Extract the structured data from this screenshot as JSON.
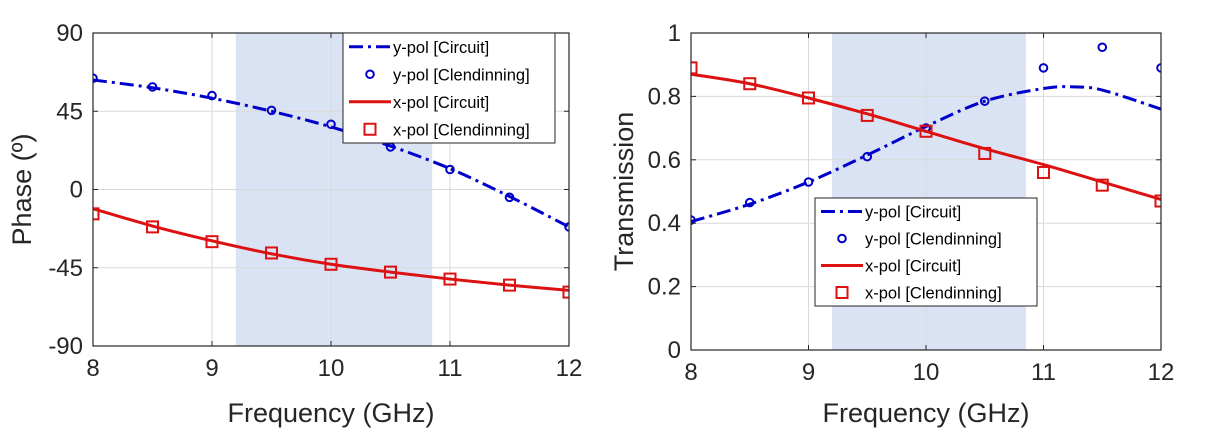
{
  "colors": {
    "ypol": "#0000cc",
    "xpol": "#dd1111",
    "band": "#dae3f3",
    "grid": "#d9d9d9",
    "axis": "#262626"
  },
  "chart_data": [
    {
      "type": "line",
      "xlabel": "Frequency (GHz)",
      "ylabel": "Phase (º)",
      "xlim": [
        8,
        12
      ],
      "ylim": [
        -90,
        90
      ],
      "xticks": [
        8,
        9,
        10,
        11,
        12
      ],
      "yticks": [
        -90,
        -45,
        0,
        45,
        90
      ],
      "xtick_labels": [
        "8",
        "9",
        "10",
        "11",
        "12"
      ],
      "ytick_labels": [
        "-90",
        "-45",
        "0",
        "45",
        "90"
      ],
      "grid": true,
      "shaded_band": [
        9.2,
        10.85
      ],
      "legend_position": "top-right",
      "series": [
        {
          "name": "y-pol [Circuit]",
          "style": "dashdot-line",
          "color": "ypol",
          "x": [
            8,
            8.5,
            9,
            9.5,
            10,
            10.5,
            11,
            11.5,
            12
          ],
          "y": [
            63,
            58.5,
            52.5,
            45,
            36,
            25,
            12,
            -4,
            -21.5
          ]
        },
        {
          "name": "y-pol [Clendinning]",
          "style": "circle-marker",
          "color": "ypol",
          "x": [
            8,
            8.5,
            9,
            9.5,
            10,
            10.5,
            11,
            11.5,
            12
          ],
          "y": [
            64,
            59,
            54,
            45.5,
            37.5,
            24.5,
            11.5,
            -4.5,
            -21.5
          ]
        },
        {
          "name": "x-pol [Circuit]",
          "style": "solid-line",
          "color": "xpol",
          "x": [
            8,
            8.5,
            9,
            9.5,
            10,
            10.5,
            11,
            11.5,
            12
          ],
          "y": [
            -11,
            -21,
            -29.5,
            -37,
            -43,
            -47.5,
            -51.5,
            -55,
            -58
          ]
        },
        {
          "name": "x-pol [Clendinning]",
          "style": "square-marker",
          "color": "xpol",
          "x": [
            8,
            8.5,
            9,
            9.5,
            10,
            10.5,
            11,
            11.5,
            12
          ],
          "y": [
            -14,
            -21.5,
            -30,
            -36.5,
            -43,
            -47.5,
            -51.5,
            -55,
            -59
          ]
        }
      ]
    },
    {
      "type": "line",
      "xlabel": "Frequency (GHz)",
      "ylabel": "Transmission",
      "xlim": [
        8,
        12
      ],
      "ylim": [
        0,
        1
      ],
      "xticks": [
        8,
        9,
        10,
        11,
        12
      ],
      "yticks": [
        0,
        0.2,
        0.4,
        0.6,
        0.8,
        1
      ],
      "xtick_labels": [
        "8",
        "9",
        "10",
        "11",
        "12"
      ],
      "ytick_labels": [
        "0",
        "0.2",
        "0.4",
        "0.6",
        "0.8",
        "1"
      ],
      "grid": true,
      "shaded_band": [
        9.2,
        10.85
      ],
      "legend_position": "bottom-center",
      "series": [
        {
          "name": "y-pol [Circuit]",
          "style": "dashdot-line",
          "color": "ypol",
          "x": [
            8,
            8.5,
            9,
            9.5,
            10,
            10.5,
            11,
            11.25,
            11.5,
            12
          ],
          "y": [
            0.405,
            0.46,
            0.53,
            0.615,
            0.705,
            0.785,
            0.825,
            0.83,
            0.82,
            0.76
          ]
        },
        {
          "name": "y-pol [Clendinning]",
          "style": "circle-marker",
          "color": "ypol",
          "x": [
            8,
            8.5,
            9,
            9.5,
            10,
            10.5,
            11,
            11.5,
            12
          ],
          "y": [
            0.41,
            0.465,
            0.53,
            0.61,
            0.7,
            0.785,
            0.89,
            0.955,
            0.89
          ]
        },
        {
          "name": "x-pol [Circuit]",
          "style": "solid-line",
          "color": "xpol",
          "x": [
            8,
            8.5,
            9,
            9.5,
            10,
            10.5,
            11,
            11.5,
            12
          ],
          "y": [
            0.87,
            0.84,
            0.795,
            0.745,
            0.69,
            0.635,
            0.585,
            0.53,
            0.475
          ]
        },
        {
          "name": "x-pol [Clendinning]",
          "style": "square-marker",
          "color": "xpol",
          "x": [
            8,
            8.5,
            9,
            9.5,
            10,
            10.5,
            11,
            11.5,
            12
          ],
          "y": [
            0.89,
            0.84,
            0.795,
            0.74,
            0.69,
            0.62,
            0.56,
            0.52,
            0.47
          ]
        }
      ]
    }
  ]
}
